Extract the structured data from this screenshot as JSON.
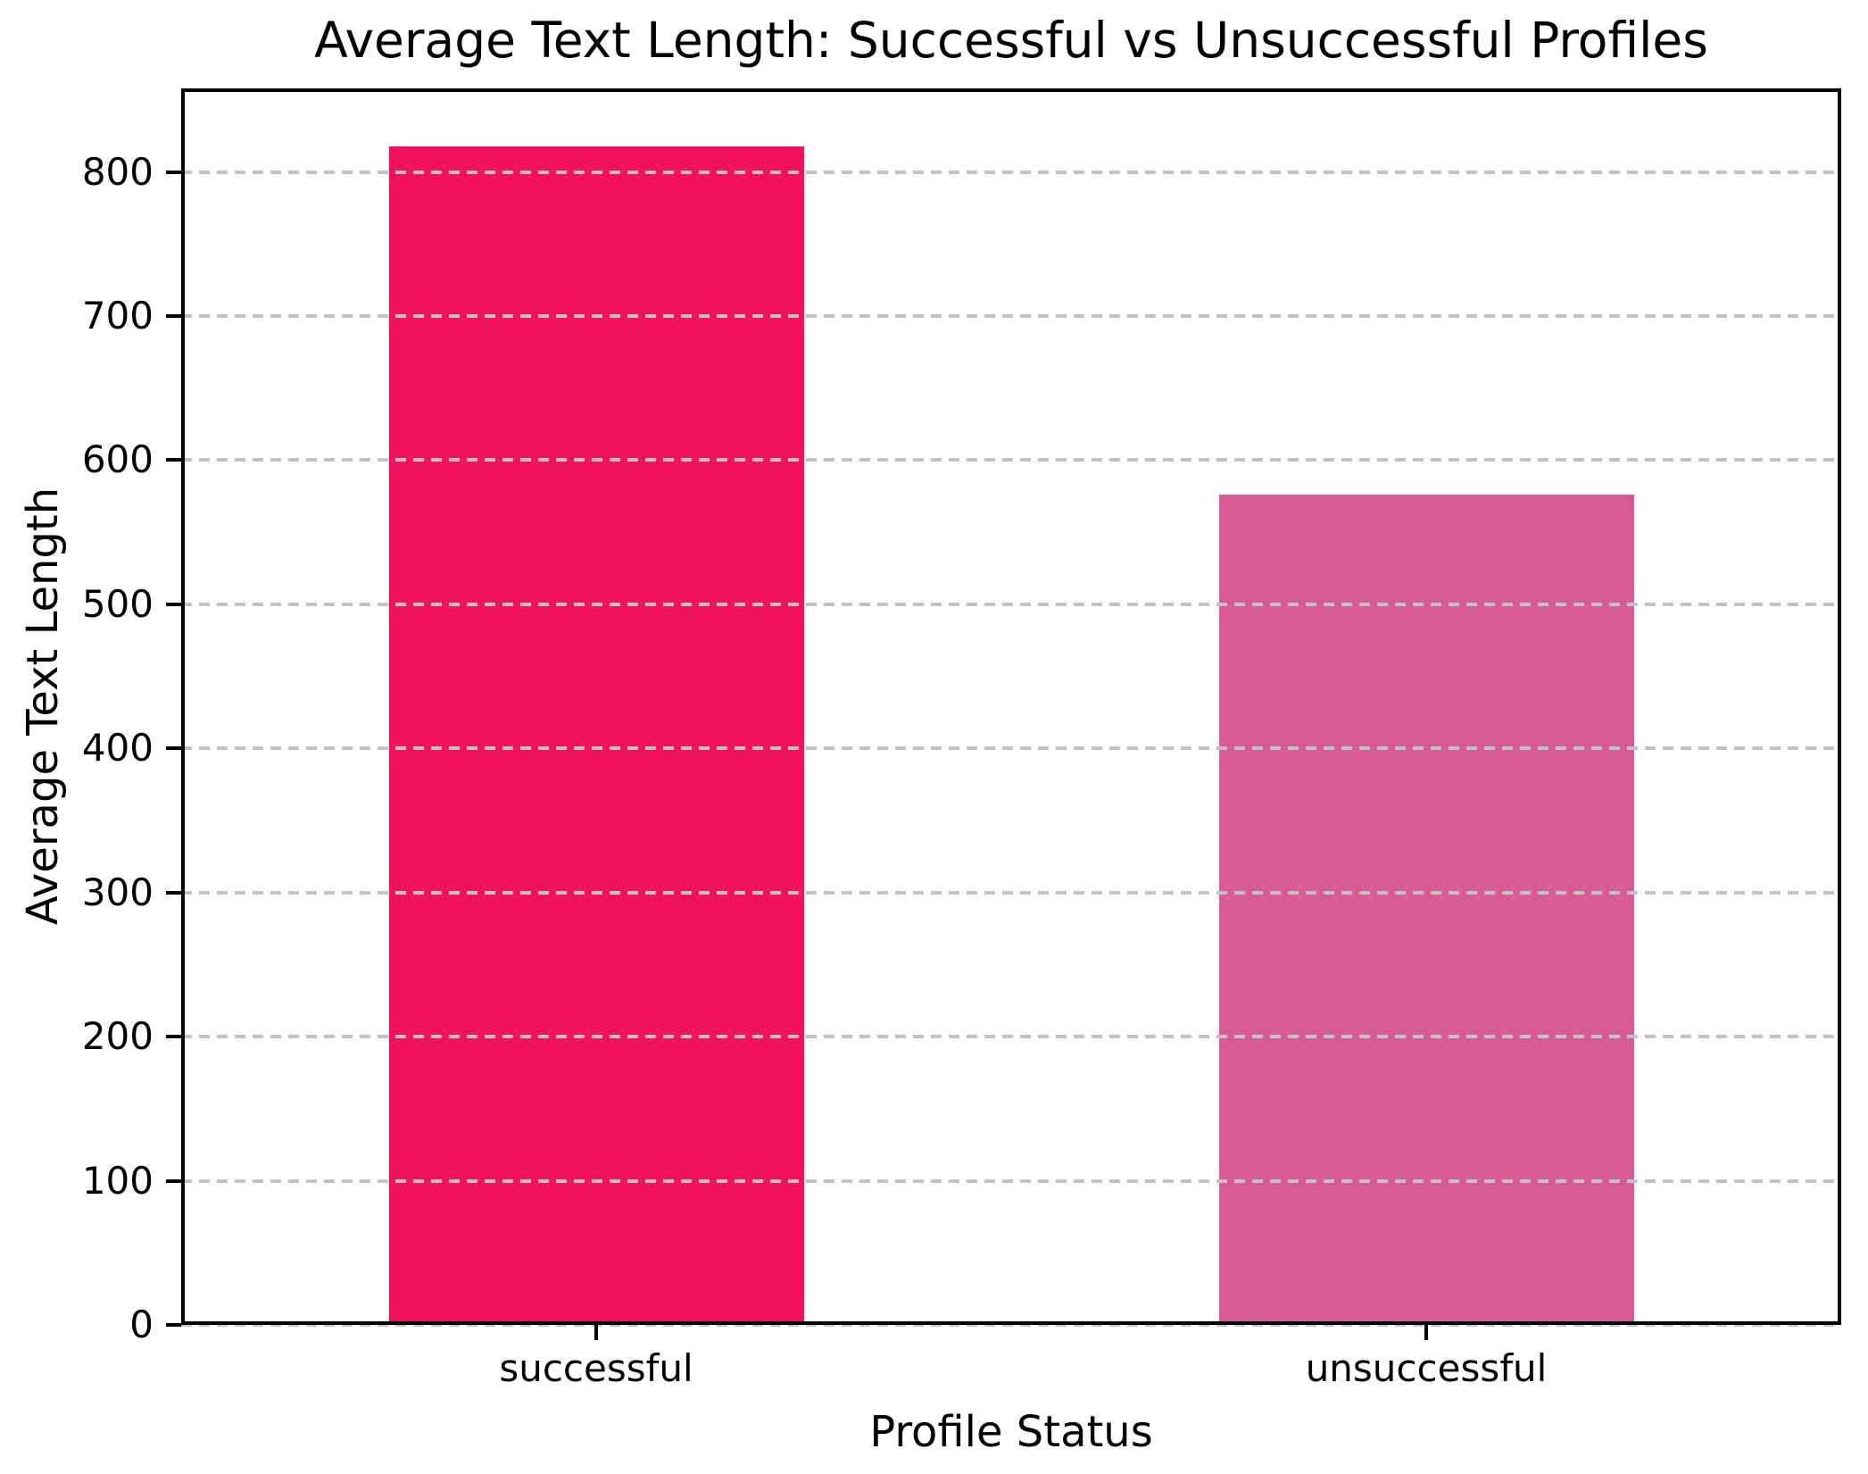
{
  "chart_data": {
    "type": "bar",
    "title": "Average Text Length: Successful vs Unsuccessful Profiles",
    "xlabel": "Profile Status",
    "ylabel": "Average Text Length",
    "categories": [
      "successful",
      "unsuccessful"
    ],
    "values": [
      818,
      576
    ],
    "bar_colors": [
      "#F1115F",
      "#D75C96"
    ],
    "ylim": [
      0,
      858
    ],
    "yticks": [
      0,
      100,
      200,
      300,
      400,
      500,
      600,
      700,
      800
    ],
    "grid": "horizontal-dashed",
    "grid_color": "#C2C2C2",
    "background_color": "#FFFFFF",
    "spine_color": "#000000",
    "legend": "none"
  }
}
